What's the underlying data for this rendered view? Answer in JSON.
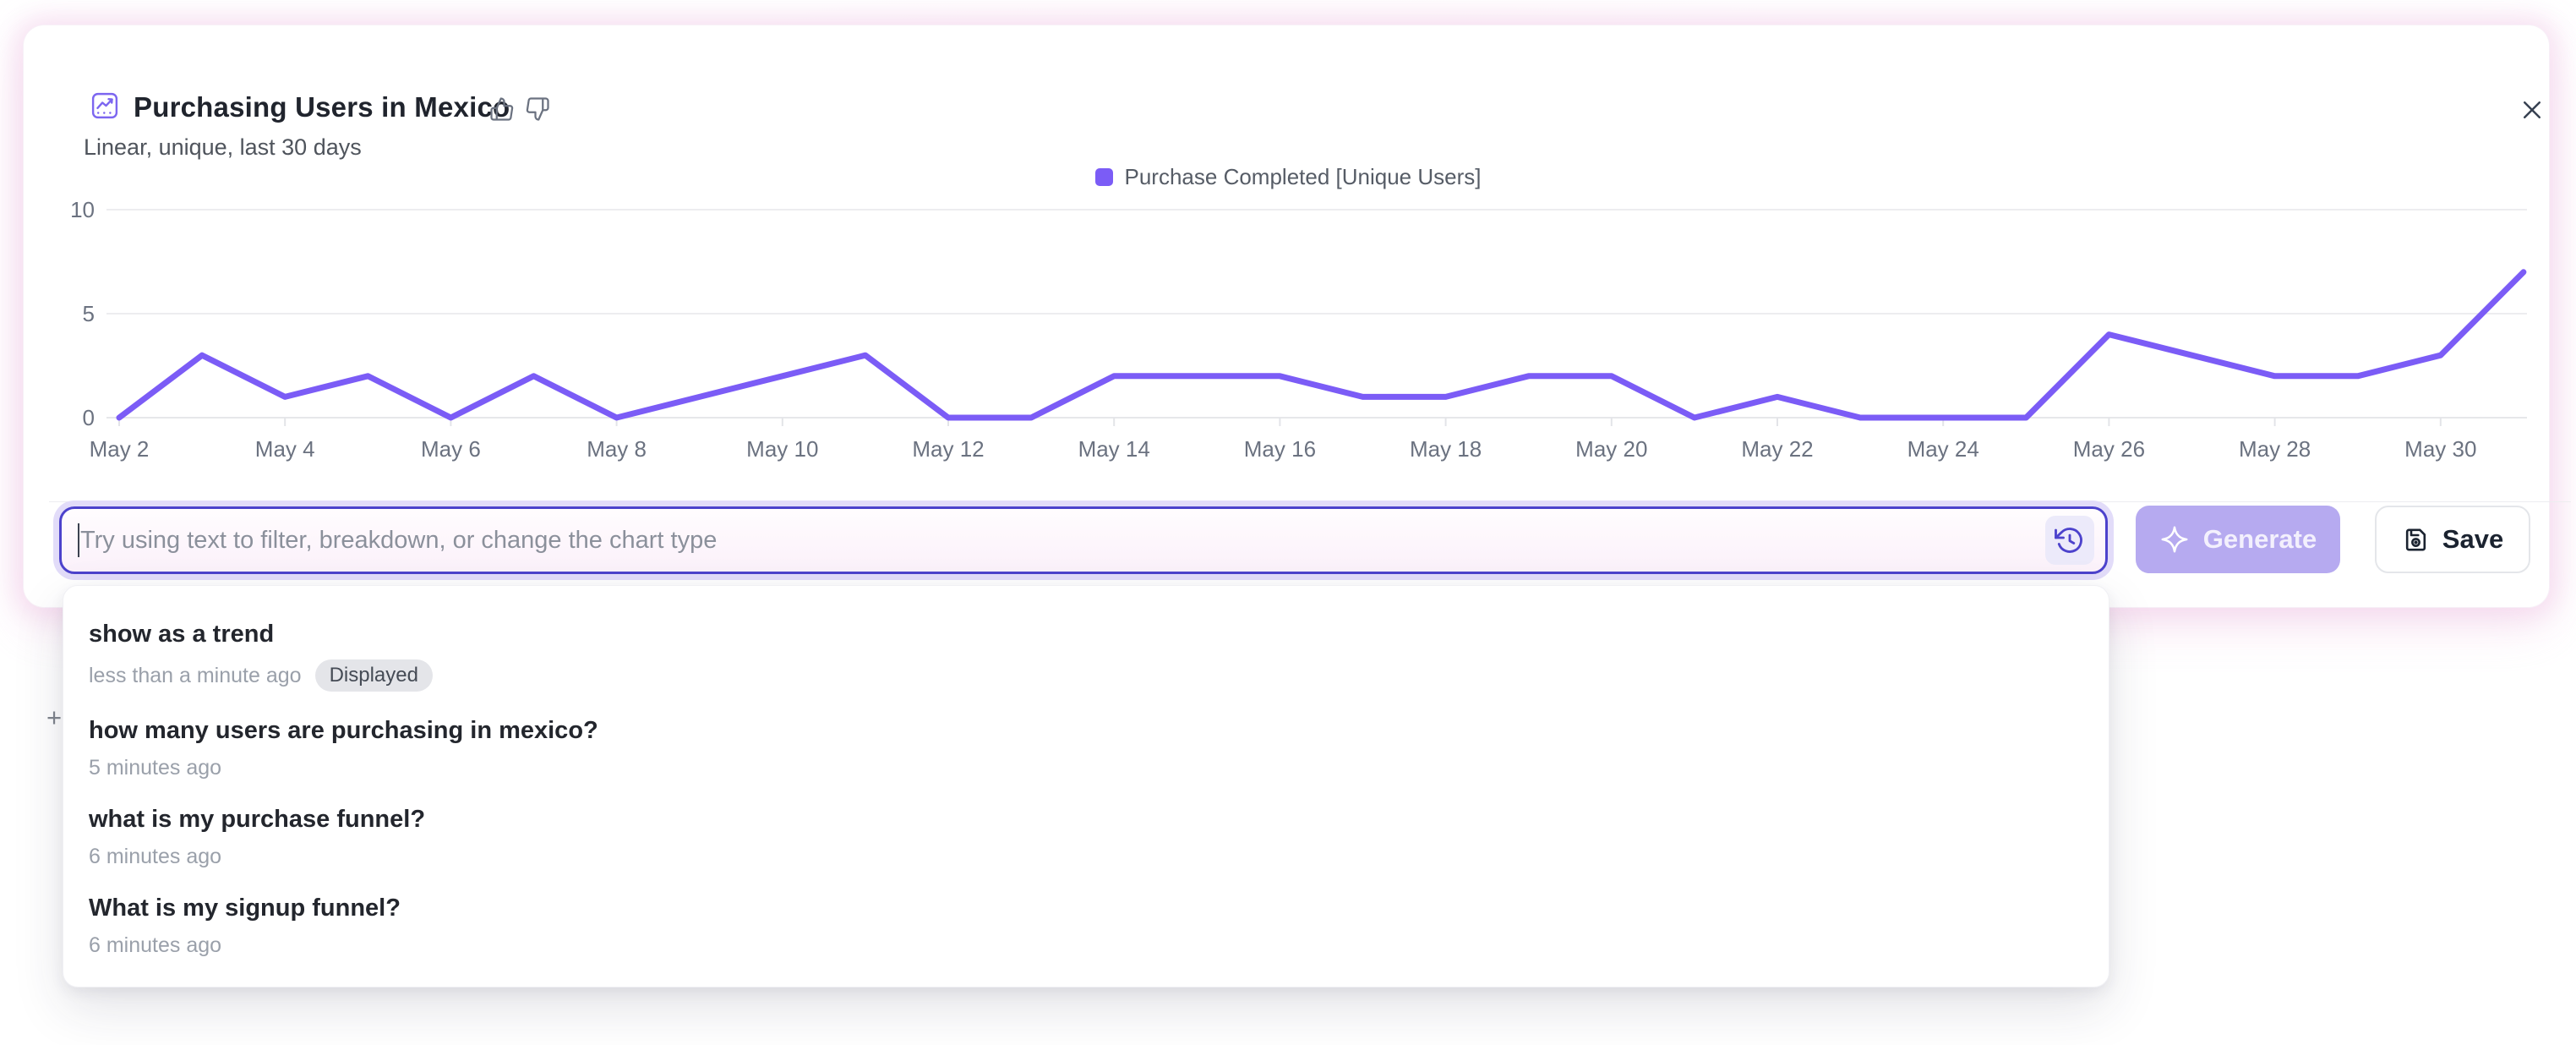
{
  "card": {
    "title": "Purchasing Users in Mexico",
    "subtitle": "Linear, unique, last 30 days",
    "title_icon": "line-chart-icon",
    "feedback_icons": [
      "thumbs-up-icon",
      "thumbs-down-icon"
    ],
    "close_icon": "close-icon"
  },
  "chart_data": {
    "type": "line",
    "title": "Purchasing Users in Mexico",
    "categories": [
      "May 2",
      "May 3",
      "May 4",
      "May 5",
      "May 6",
      "May 7",
      "May 8",
      "May 9",
      "May 10",
      "May 11",
      "May 12",
      "May 13",
      "May 14",
      "May 15",
      "May 16",
      "May 17",
      "May 18",
      "May 19",
      "May 20",
      "May 21",
      "May 22",
      "May 23",
      "May 24",
      "May 25",
      "May 26",
      "May 27",
      "May 28",
      "May 29",
      "May 30",
      "May 31"
    ],
    "series": [
      {
        "name": "Purchase Completed [Unique Users]",
        "color": "#7b5cf6",
        "values": [
          0,
          3,
          1,
          2,
          0,
          2,
          0,
          1,
          2,
          3,
          0,
          0,
          2,
          2,
          2,
          1,
          1,
          2,
          2,
          0,
          1,
          0,
          0,
          0,
          4,
          3,
          2,
          2,
          3,
          7
        ]
      }
    ],
    "xlabel": "",
    "ylabel": "",
    "ylim": [
      0,
      10
    ],
    "y_ticks": [
      0,
      5,
      10
    ],
    "x_tick_step": 2,
    "grid": "horizontal",
    "legend_position": "top-center"
  },
  "prompt_bar": {
    "placeholder": "Try using text to filter, breakdown, or change the chart type",
    "history_icon": "history-icon",
    "generate": {
      "label": "Generate",
      "icon": "sparkle-icon"
    },
    "save": {
      "label": "Save",
      "icon": "save-icon"
    }
  },
  "history_dropdown": {
    "items": [
      {
        "query": "show as a trend",
        "time": "less than a minute ago",
        "badge": "Displayed"
      },
      {
        "query": "how many users are purchasing in mexico?",
        "time": "5 minutes ago"
      },
      {
        "query": "what is my purchase funnel?",
        "time": "6 minutes ago"
      },
      {
        "query": "What is my signup funnel?",
        "time": "6 minutes ago"
      }
    ]
  },
  "colors": {
    "accent_purple": "#7b5cf6",
    "input_border": "#4c42cc",
    "generate_bg": "#b6aaf0",
    "card_glow": "#f3cde9",
    "axis_text": "#6b7280"
  },
  "misc": {
    "plus_mark": "+"
  }
}
